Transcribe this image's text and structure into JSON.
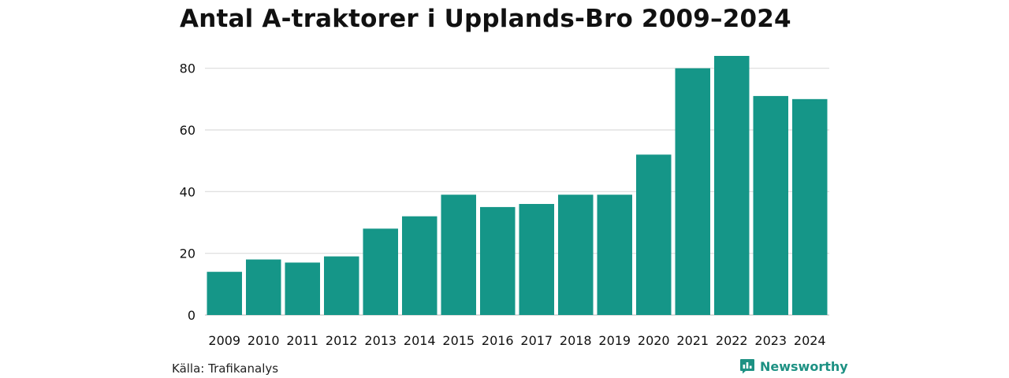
{
  "chart_data": {
    "type": "bar",
    "title": "Antal A-traktorer i Upplands-Bro 2009–2024",
    "categories": [
      "2009",
      "2010",
      "2011",
      "2012",
      "2013",
      "2014",
      "2015",
      "2016",
      "2017",
      "2018",
      "2019",
      "2020",
      "2021",
      "2022",
      "2023",
      "2024"
    ],
    "values": [
      14,
      18,
      17,
      19,
      28,
      32,
      39,
      35,
      36,
      39,
      39,
      52,
      80,
      84,
      71,
      70
    ],
    "xlabel": "",
    "ylabel": "",
    "ylim": [
      0,
      84
    ],
    "yticks": [
      0,
      20,
      40,
      60,
      80
    ],
    "grid": true,
    "bar_color": "#159688"
  },
  "footer": {
    "source": "Källa: Trafikanalys",
    "brand": "Newsworthy",
    "brand_icon": "bar-chart-speech-bubble-icon",
    "brand_color": "#1d9183"
  }
}
